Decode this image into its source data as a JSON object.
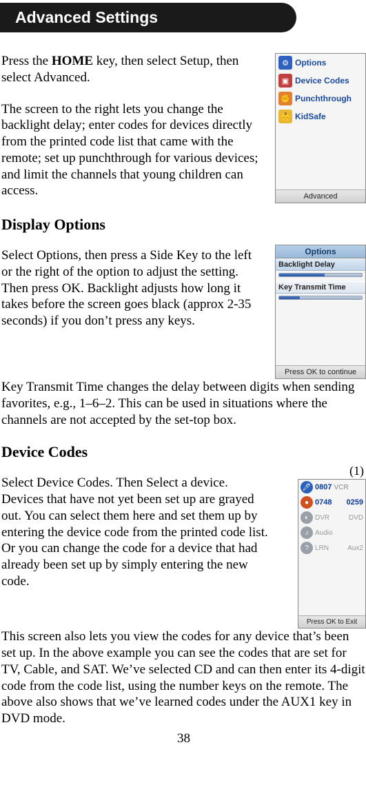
{
  "pageTitle": "Advanced Settings",
  "intro1": "Press the <b>HOME</b> key, then select Setup, then select Advanced.",
  "intro2": "The screen to the right lets you change the backlight delay; enter codes for devices directly from the printed code list that came with the remote; set up punchthrough for various devices; and limit the channels that young children can access.",
  "h_display": "Display Options",
  "disp1": "Select Options, then press a Side Key to the left or the right of the option to adjust the setting. Then press OK. Backlight adjusts how long it takes before the screen goes black (approx 2-35 seconds) if you don’t press any keys.",
  "disp2": "Key Transmit Time changes the delay between digits when sending favorites, e.g., 1–6–2. This can be used in situations where the channels are not accepted by the set-top box.",
  "h_device": "Device Codes",
  "dev1": "Select Device Codes. Then Select a device. Devices that have not yet been set up are grayed out. You can select them here and set them up by entering the device code from the printed code list. Or you can change the code for a device that had already been set up by simply entering the new code.",
  "dev2": "This screen also lets you view the codes for any device that’s been set up. In the above example you can see the codes that are set for TV, Cable, and SAT. We’ve selected CD and can then enter its 4-digit code from the code list, using the number keys on the remote. The above also shows that we’ve learned codes under the AUX1 key in DVD mode.",
  "one": "(1)",
  "pageNum": "38",
  "ss1": {
    "items": [
      {
        "label": "Options",
        "bg": "#3060c0",
        "icon": "⚙"
      },
      {
        "label": "Device Codes",
        "bg": "#c04040",
        "icon": "▣"
      },
      {
        "label": "Punchthrough",
        "bg": "#e08030",
        "icon": "✊"
      },
      {
        "label": "KidSafe",
        "bg": "#e8b830",
        "icon": "👶"
      }
    ],
    "footer": "Advanced"
  },
  "ss2": {
    "header": "Options",
    "row1": "Backlight Delay",
    "row2": "Key Transmit Time",
    "fill1": "55%",
    "fill2": "25%",
    "footer": "Press OK to continue"
  },
  "ss3": {
    "rows": [
      {
        "ico": "#2a60b8",
        "glyph": "🖊",
        "code": "0807",
        "lbl": "VCR",
        "extra": ""
      },
      {
        "ico": "#d05020",
        "glyph": "●",
        "code": "0748",
        "lbl": "",
        "extra": "0259"
      },
      {
        "ico": "#9aa0a8",
        "glyph": "◐",
        "code": "",
        "lbl": "DVR",
        "extra": "DVD",
        "gray": true
      },
      {
        "ico": "#9aa0a8",
        "glyph": "♪",
        "code": "",
        "lbl": "Audio",
        "extra": "",
        "gray": true
      },
      {
        "ico": "#9aa0a8",
        "glyph": "?",
        "code": "",
        "lbl": "LRN",
        "extra": "Aux2",
        "gray": true,
        "q": true
      }
    ],
    "footer": "Press OK to Exit"
  }
}
